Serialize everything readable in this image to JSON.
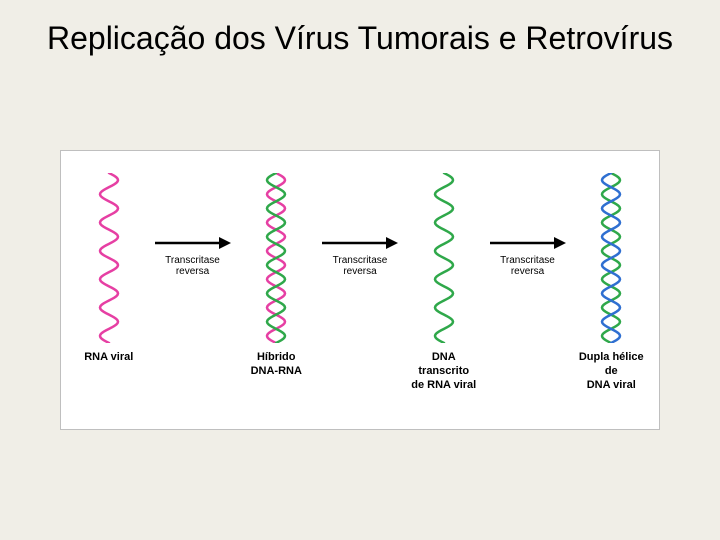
{
  "title": "Replicação dos Vírus Tumorais e Retrovírus",
  "colors": {
    "rna": "#e63fa3",
    "dna": "#2fa84a",
    "dna2": "#2f6fd1",
    "arrow": "#000000",
    "background": "#f0eee7",
    "box_bg": "#ffffff",
    "box_border": "#bfbfbf"
  },
  "helix_geometry": {
    "width": 36,
    "height": 170,
    "cycles": 6,
    "amplitude": 9,
    "stroke_width": 2.5
  },
  "stages": [
    {
      "id": "rna-viral",
      "label": "RNA viral",
      "strands": [
        {
          "color_key": "rna",
          "phase": 0
        }
      ]
    },
    {
      "id": "hibrido",
      "label": "Híbrido\nDNA-RNA",
      "strands": [
        {
          "color_key": "rna",
          "phase": 0
        },
        {
          "color_key": "dna",
          "phase": 3.14159
        }
      ]
    },
    {
      "id": "dna-transcrito",
      "label": "DNA transcrito\nde RNA viral",
      "strands": [
        {
          "color_key": "dna",
          "phase": 0
        }
      ]
    },
    {
      "id": "dupla-helice",
      "label": "Dupla hélice de\nDNA viral",
      "strands": [
        {
          "color_key": "dna",
          "phase": 0
        },
        {
          "color_key": "dna2",
          "phase": 3.14159
        }
      ]
    }
  ],
  "arrows": [
    {
      "label": "Transcritase\nreversa"
    },
    {
      "label": "Transcritase\nreversa"
    },
    {
      "label": "Transcritase\nreversa"
    }
  ]
}
